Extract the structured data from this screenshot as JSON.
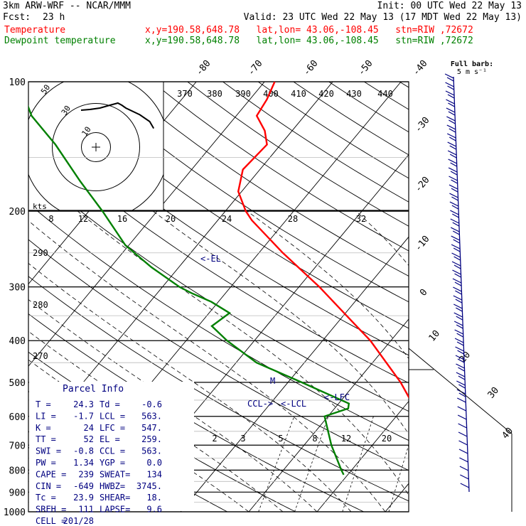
{
  "header": {
    "model": "3km ARW-WRF -- NCAR/MMM",
    "init": "Init: 00 UTC Wed 22 May 13",
    "fcst_label": "Fcst:",
    "fcst_value": "23 h",
    "valid": "Valid: 23 UTC Wed 22 May 13 (17 MDT Wed 22 May 13)"
  },
  "legend": [
    {
      "name": "Temperature",
      "info": "x,y=190.58,648.78   lat,lon= 43.06,-108.45   stn=RIW ,72672",
      "color": "#ff0000"
    },
    {
      "name": "Dewpoint temperature",
      "info": "x,y=190.58,648.78   lat,lon= 43.06,-108.45   stn=RIW ,72672",
      "color": "#008000"
    }
  ],
  "colors": {
    "temperature": "#ff0000",
    "dewpoint": "#008000",
    "annotation": "#000080",
    "wind": "#000080",
    "grid": "#000000"
  },
  "chart_data": {
    "type": "line",
    "y_scale": "log",
    "pressure_range": [
      1000,
      100
    ],
    "pressure_ticks": [
      "100",
      "200",
      "300",
      "400",
      "500",
      "600",
      "700",
      "800",
      "900",
      "1000"
    ],
    "isotherm_labels": [
      "-80",
      "-70",
      "-60",
      "-50",
      "-40",
      "-30",
      "-20",
      "-10",
      "0",
      "10",
      "20",
      "30",
      "40"
    ],
    "theta_labels": [
      "370",
      "380",
      "390",
      "400",
      "410",
      "420",
      "430",
      "440"
    ],
    "theta_left_labels": [
      "290",
      "280",
      "270"
    ],
    "mixing_ratio_labels": [
      "2",
      "3",
      "5",
      "8",
      "12",
      "20"
    ],
    "hodograph": {
      "speed_label": "kts",
      "ring_labels": [
        "10",
        "30",
        "50"
      ],
      "x_ticks": [
        "8",
        "12",
        "16",
        "20",
        "24",
        "28",
        "32"
      ],
      "trace": [
        [
          -2.5,
          10
        ],
        [
          2,
          11
        ],
        [
          7,
          13
        ],
        [
          12,
          17
        ],
        [
          16,
          20
        ],
        [
          18,
          17
        ],
        [
          20,
          13
        ],
        [
          27,
          8
        ],
        [
          32,
          5
        ],
        [
          34,
          2
        ]
      ]
    },
    "series": [
      {
        "name": "Temperature",
        "points": [
          [
            820,
            24.3
          ],
          [
            780,
            19.0
          ],
          [
            700,
            12.5
          ],
          [
            600,
            4.5
          ],
          [
            560,
            0.8
          ],
          [
            500,
            -3.5
          ],
          [
            400,
            -13.0
          ],
          [
            350,
            -19.5
          ],
          [
            300,
            -27.0
          ],
          [
            250,
            -36.5
          ],
          [
            210,
            -45.0
          ],
          [
            200,
            -47.0
          ],
          [
            180,
            -50.5
          ],
          [
            160,
            -52.5
          ],
          [
            140,
            -52.0
          ],
          [
            130,
            -54.0
          ],
          [
            120,
            -57.0
          ],
          [
            110,
            -57.5
          ],
          [
            100,
            -58.5
          ]
        ]
      },
      {
        "name": "Dewpoint temperature",
        "points": [
          [
            820,
            -0.6
          ],
          [
            800,
            -1.5
          ],
          [
            700,
            -6.0
          ],
          [
            600,
            -10.5
          ],
          [
            575,
            -8.0
          ],
          [
            560,
            -8.5
          ],
          [
            500,
            -18.0
          ],
          [
            450,
            -27.0
          ],
          [
            400,
            -34.0
          ],
          [
            370,
            -38.0
          ],
          [
            345,
            -37.0
          ],
          [
            325,
            -41.0
          ],
          [
            310,
            -45.0
          ],
          [
            300,
            -47.5
          ],
          [
            270,
            -54.0
          ],
          [
            240,
            -60.5
          ],
          [
            200,
            -68.0
          ],
          [
            170,
            -75.0
          ],
          [
            140,
            -83.0
          ],
          [
            120,
            -90.0
          ],
          [
            100,
            -96.0
          ]
        ]
      }
    ],
    "levels": [
      {
        "label": "<-EL",
        "pressure": 259
      },
      {
        "label": "M",
        "pressure": 500
      },
      {
        "label": "<-LFC",
        "pressure": 547
      },
      {
        "label": "CCL->",
        "pressure": 563
      },
      {
        "label": "<-LCL",
        "pressure": 563
      }
    ],
    "wind_barb_label": "Full barb:",
    "wind_barb_unit": "5 m s⁻¹"
  },
  "parcel": {
    "title": "Parcel Info",
    "rows": [
      [
        "T    =",
        "24.3",
        "Td  =",
        "-0.6"
      ],
      [
        "LI   =",
        "-1.7",
        "LCL =",
        "563."
      ],
      [
        "K    =",
        "24",
        "LFC =",
        "547."
      ],
      [
        "TT   =",
        "52",
        "EL  =",
        "259."
      ],
      [
        "SWI  =",
        "-0.8",
        "CCL =",
        "563."
      ],
      [
        "PW   =",
        "1.34",
        "YGP =",
        "0.0"
      ],
      [
        "CAPE =",
        "239",
        "SWEAT=",
        "134"
      ],
      [
        "CIN  =",
        "-649",
        "HWBZ=",
        "3745."
      ],
      [
        "Tc   =",
        "23.9",
        "SHEAR=",
        "18."
      ],
      [
        "SREH =",
        "111",
        "LAPSE=",
        "9.6"
      ],
      [
        "CELL =",
        "201/28",
        "",
        ""
      ]
    ]
  }
}
